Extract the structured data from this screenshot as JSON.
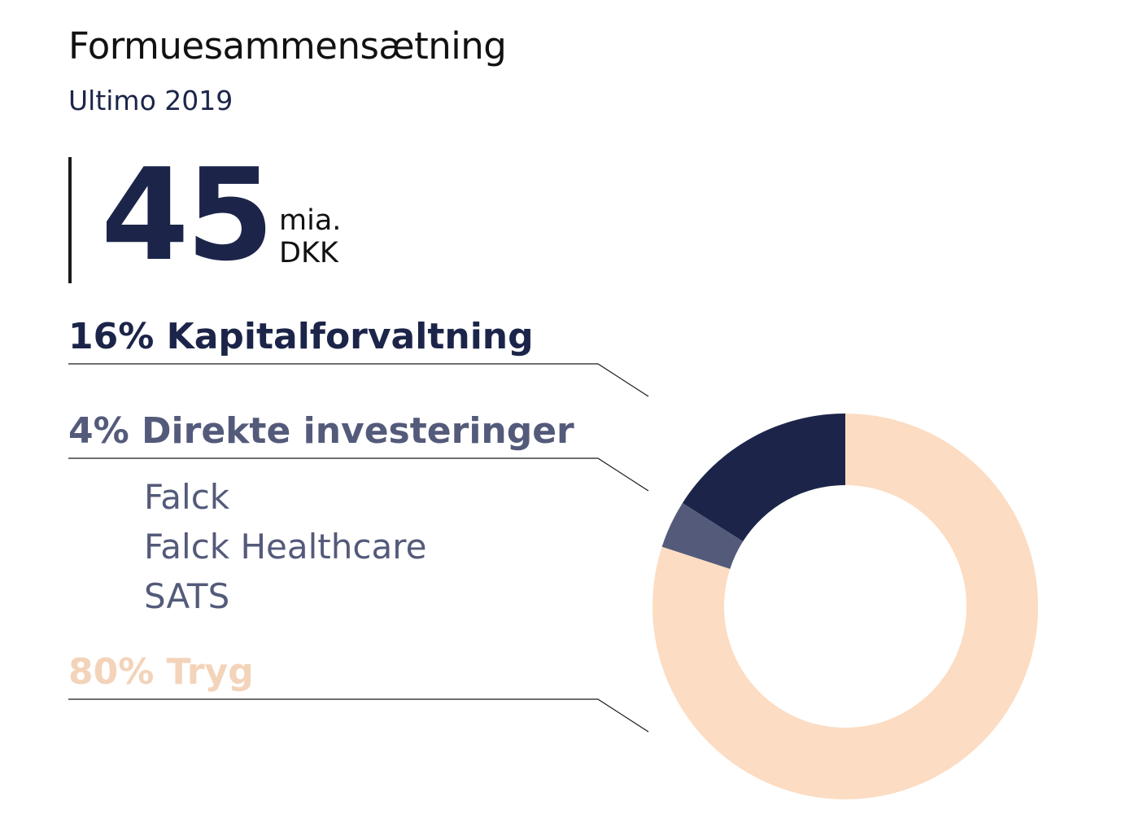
{
  "header": {
    "title": "Formuesammensætning",
    "subtitle": "Ultimo 2019"
  },
  "total": {
    "value": "45",
    "unit_line1": "mia.",
    "unit_line2": "DKK"
  },
  "labels": [
    {
      "text": "16% Kapitalforvaltning"
    },
    {
      "text": "4% Direkte investeringer",
      "children": [
        "Falck",
        "Falck Healthcare",
        "SATS"
      ]
    },
    {
      "text": "80% Tryg"
    }
  ],
  "chart_data": {
    "type": "pie",
    "variant": "donut",
    "start": "12 o'clock",
    "direction": "counter-clockwise",
    "categories": [
      "Kapitalforvaltning",
      "Direkte investeringer",
      "Tryg"
    ],
    "values": [
      16,
      4,
      80
    ],
    "unit": "%",
    "colors": [
      "#1c2549",
      "#545a7a",
      "#fcdcc2"
    ]
  }
}
